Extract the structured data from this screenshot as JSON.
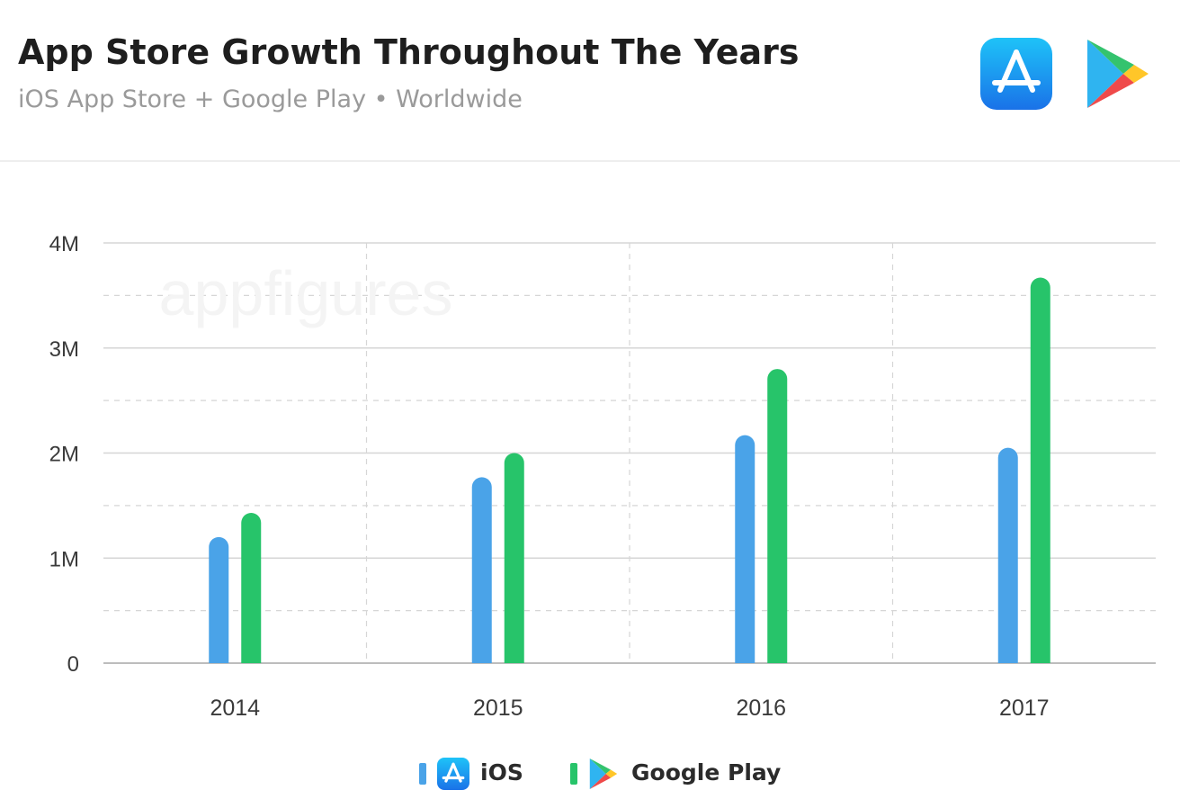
{
  "header": {
    "title": "App Store Growth Throughout The Years",
    "subtitle": "iOS App Store + Google Play • Worldwide"
  },
  "logos": {
    "app_store_icon": "app-store-icon",
    "google_play_icon": "google-play-icon"
  },
  "watermark": "appfigures",
  "colors": {
    "ios": "#4aa3e8",
    "google_play": "#27c46a",
    "grid": "#d6d6d6",
    "axis_text": "#3a3a3a"
  },
  "chart_data": {
    "type": "bar",
    "categories": [
      "2014",
      "2015",
      "2016",
      "2017"
    ],
    "series": [
      {
        "name": "iOS",
        "values": [
          1200000,
          1770000,
          2170000,
          2050000
        ]
      },
      {
        "name": "Google Play",
        "values": [
          1430000,
          2000000,
          2800000,
          3670000
        ]
      }
    ],
    "y_ticks": [
      {
        "value": 0,
        "label": "0"
      },
      {
        "value": 1000000,
        "label": "1M"
      },
      {
        "value": 2000000,
        "label": "2M"
      },
      {
        "value": 3000000,
        "label": "3M"
      },
      {
        "value": 4000000,
        "label": "4M"
      }
    ],
    "ylim": [
      0,
      4000000
    ],
    "grid": true,
    "legend_position": "bottom-center"
  }
}
